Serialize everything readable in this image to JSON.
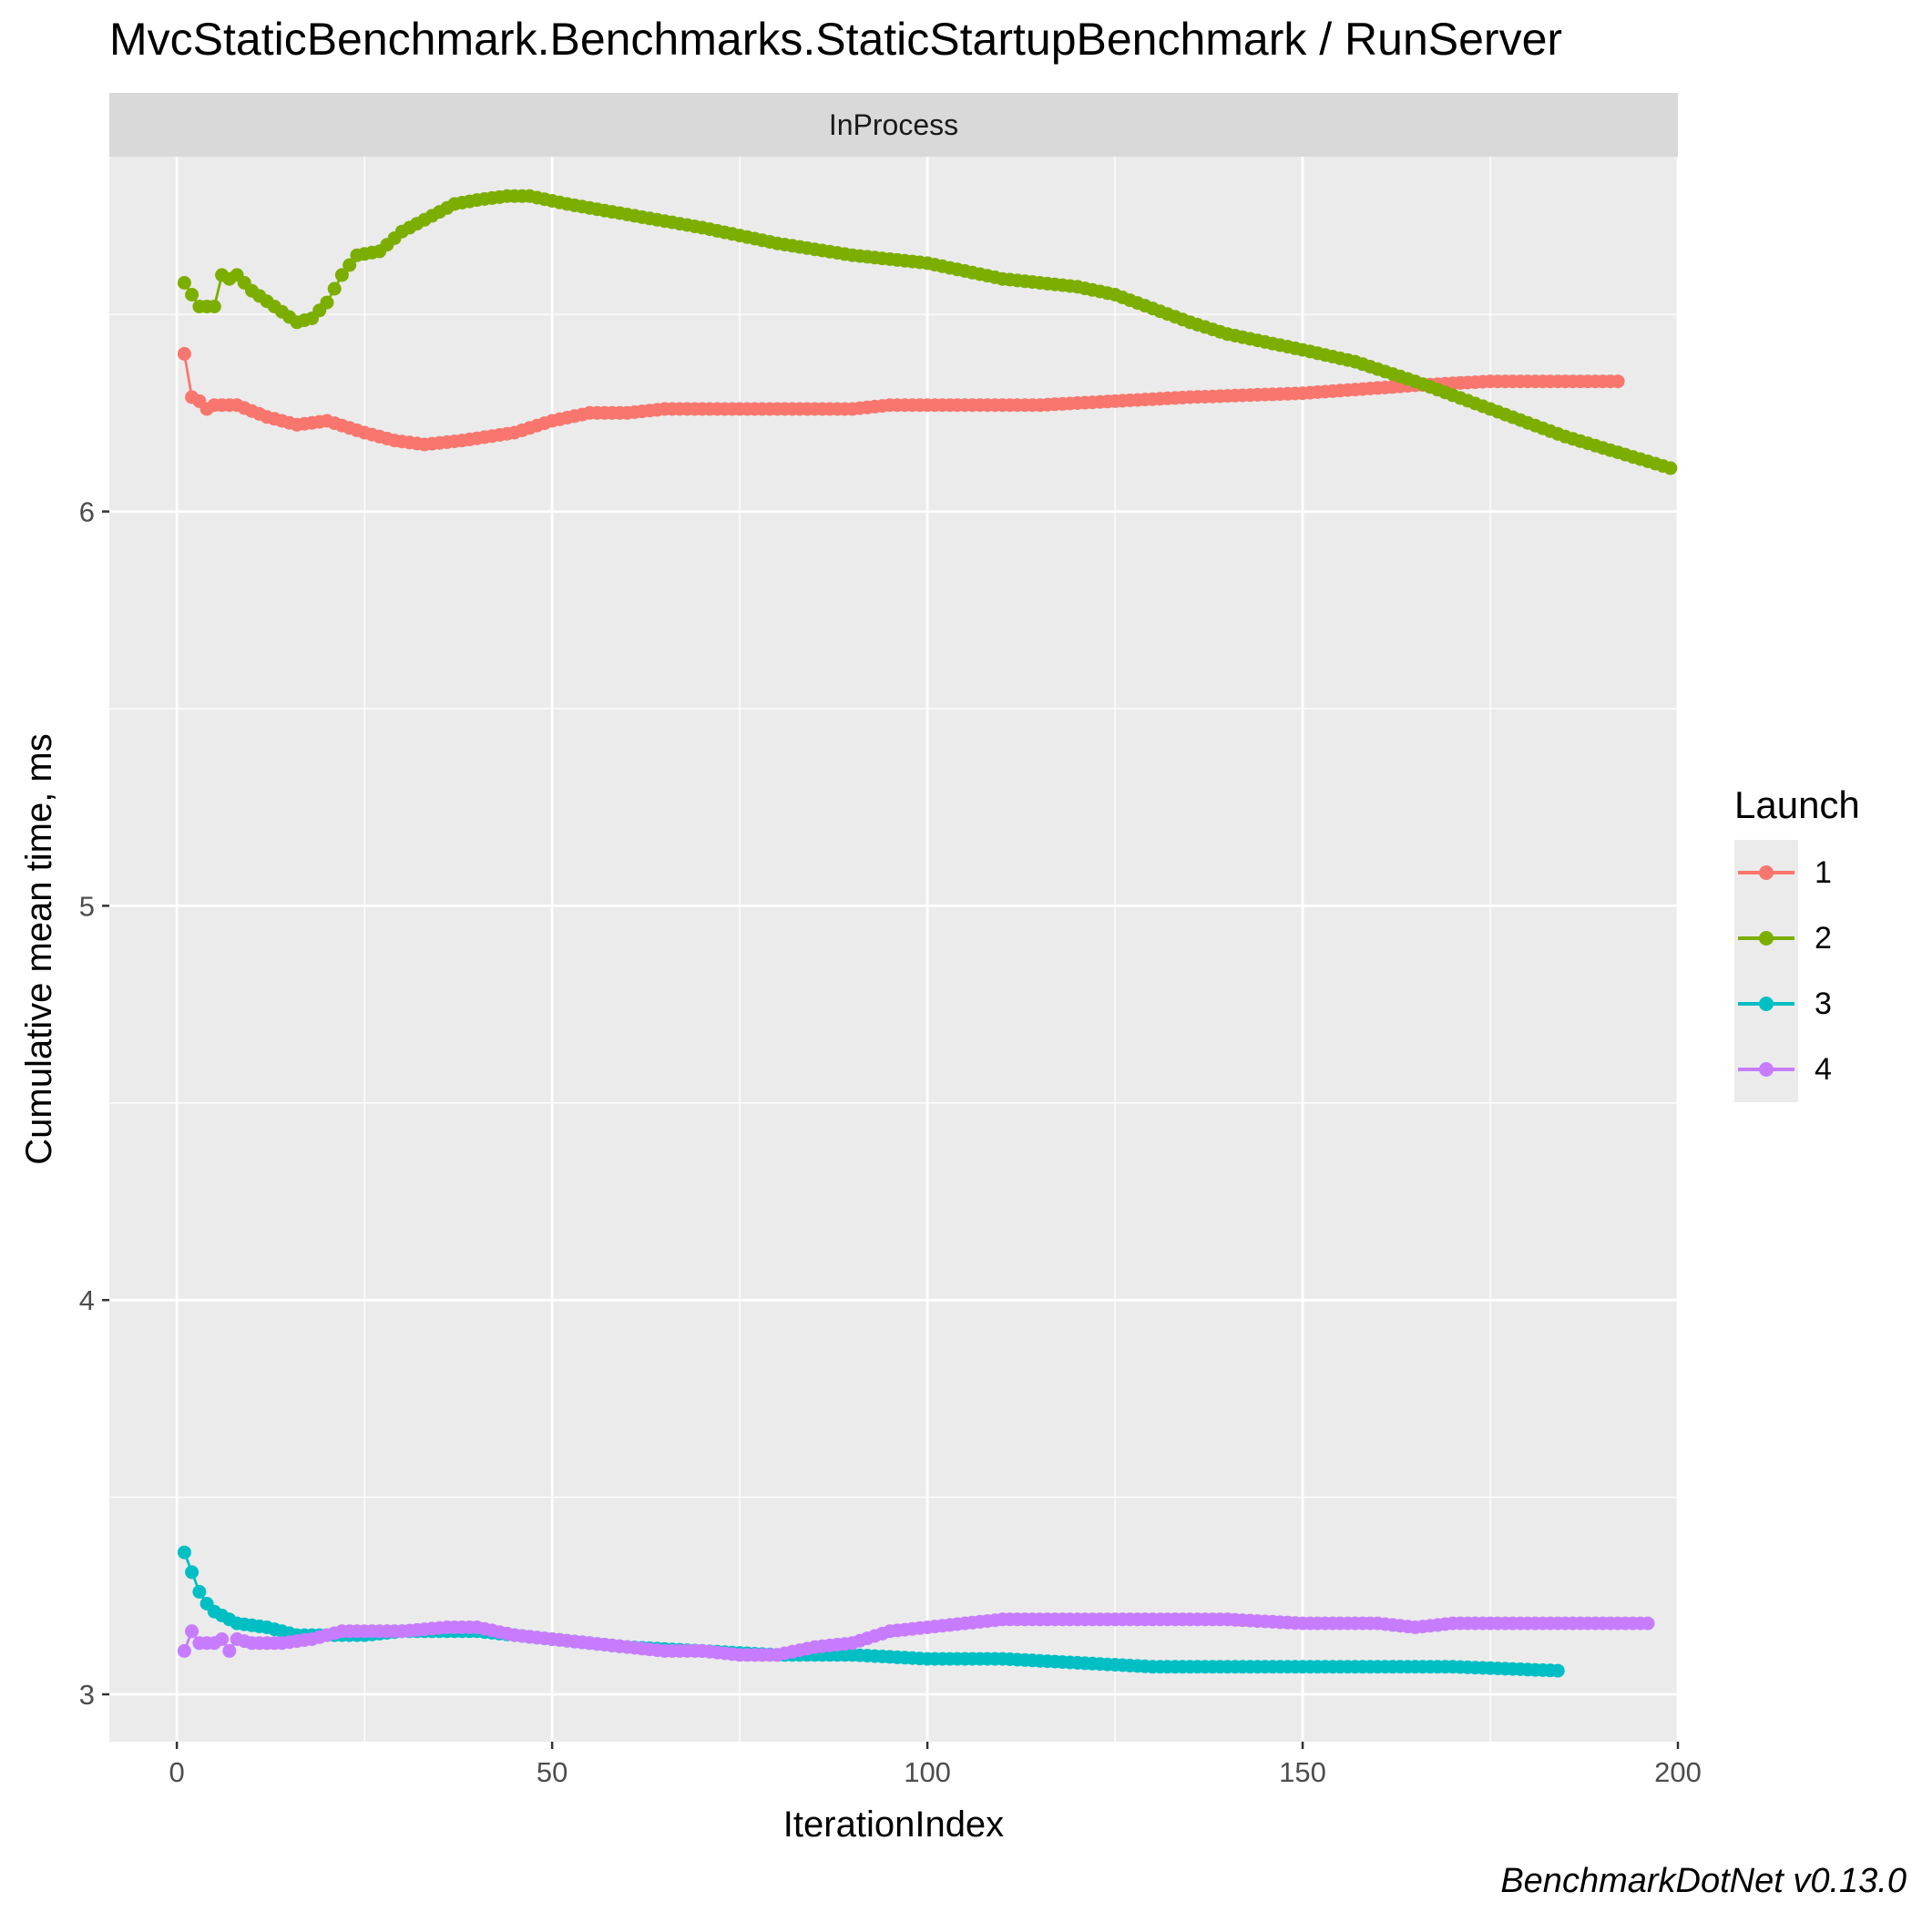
{
  "chart_data": {
    "type": "line",
    "title": "MvcStaticBenchmark.Benchmarks.StaticStartupBenchmark / RunServer",
    "panel_label": "InProcess",
    "xlabel": "IterationIndex",
    "ylabel": "Cumulative mean time, ms",
    "xlim": [
      -9,
      200
    ],
    "ylim": [
      2.88,
      6.9
    ],
    "x_ticks": [
      0,
      50,
      100,
      150,
      200
    ],
    "y_ticks": [
      3,
      4,
      5,
      6
    ],
    "grid": true,
    "legend": {
      "title": "Launch",
      "placement": "right"
    },
    "caption": "BenchmarkDotNet v0.13.0",
    "series": [
      {
        "name": "1",
        "color": "#F8766D",
        "last_x": 192,
        "knots": [
          [
            1,
            6.4
          ],
          [
            2,
            6.29
          ],
          [
            3,
            6.28
          ],
          [
            4,
            6.26
          ],
          [
            5,
            6.27
          ],
          [
            8,
            6.27
          ],
          [
            12,
            6.24
          ],
          [
            16,
            6.22
          ],
          [
            20,
            6.23
          ],
          [
            25,
            6.2
          ],
          [
            29,
            6.18
          ],
          [
            33,
            6.17
          ],
          [
            38,
            6.18
          ],
          [
            45,
            6.2
          ],
          [
            50,
            6.23
          ],
          [
            55,
            6.25
          ],
          [
            60,
            6.25
          ],
          [
            65,
            6.26
          ],
          [
            75,
            6.26
          ],
          [
            90,
            6.26
          ],
          [
            95,
            6.27
          ],
          [
            100,
            6.27
          ],
          [
            115,
            6.27
          ],
          [
            125,
            6.28
          ],
          [
            135,
            6.29
          ],
          [
            150,
            6.3
          ],
          [
            165,
            6.32
          ],
          [
            175,
            6.33
          ],
          [
            185,
            6.33
          ],
          [
            192,
            6.33
          ]
        ]
      },
      {
        "name": "2",
        "color": "#7CAE00",
        "last_x": 199,
        "knots": [
          [
            1,
            6.58
          ],
          [
            2,
            6.55
          ],
          [
            3,
            6.52
          ],
          [
            5,
            6.52
          ],
          [
            6,
            6.6
          ],
          [
            7,
            6.59
          ],
          [
            8,
            6.6
          ],
          [
            10,
            6.56
          ],
          [
            13,
            6.52
          ],
          [
            16,
            6.48
          ],
          [
            18,
            6.49
          ],
          [
            20,
            6.53
          ],
          [
            22,
            6.6
          ],
          [
            24,
            6.65
          ],
          [
            27,
            6.66
          ],
          [
            30,
            6.71
          ],
          [
            34,
            6.75
          ],
          [
            37,
            6.78
          ],
          [
            40,
            6.79
          ],
          [
            44,
            6.8
          ],
          [
            47,
            6.8
          ],
          [
            52,
            6.78
          ],
          [
            58,
            6.76
          ],
          [
            64,
            6.74
          ],
          [
            70,
            6.72
          ],
          [
            80,
            6.68
          ],
          [
            90,
            6.65
          ],
          [
            100,
            6.63
          ],
          [
            110,
            6.59
          ],
          [
            120,
            6.57
          ],
          [
            125,
            6.55
          ],
          [
            135,
            6.48
          ],
          [
            140,
            6.45
          ],
          [
            150,
            6.41
          ],
          [
            157,
            6.38
          ],
          [
            165,
            6.33
          ],
          [
            175,
            6.26
          ],
          [
            185,
            6.19
          ],
          [
            192,
            6.15
          ],
          [
            199,
            6.11
          ]
        ]
      },
      {
        "name": "3",
        "color": "#00BFC4",
        "last_x": 184,
        "knots": [
          [
            1,
            3.36
          ],
          [
            2,
            3.31
          ],
          [
            3,
            3.26
          ],
          [
            4,
            3.23
          ],
          [
            5,
            3.21
          ],
          [
            6,
            3.2
          ],
          [
            8,
            3.18
          ],
          [
            12,
            3.17
          ],
          [
            16,
            3.15
          ],
          [
            20,
            3.15
          ],
          [
            25,
            3.15
          ],
          [
            30,
            3.16
          ],
          [
            35,
            3.16
          ],
          [
            40,
            3.16
          ],
          [
            50,
            3.14
          ],
          [
            60,
            3.12
          ],
          [
            70,
            3.11
          ],
          [
            80,
            3.1
          ],
          [
            90,
            3.1
          ],
          [
            100,
            3.09
          ],
          [
            110,
            3.09
          ],
          [
            120,
            3.08
          ],
          [
            130,
            3.07
          ],
          [
            140,
            3.07
          ],
          [
            160,
            3.07
          ],
          [
            170,
            3.07
          ],
          [
            184,
            3.06
          ]
        ]
      },
      {
        "name": "4",
        "color": "#C77CFF",
        "last_x": 196,
        "knots": [
          [
            1,
            3.11
          ],
          [
            2,
            3.16
          ],
          [
            3,
            3.13
          ],
          [
            5,
            3.13
          ],
          [
            6,
            3.14
          ],
          [
            7,
            3.11
          ],
          [
            8,
            3.14
          ],
          [
            10,
            3.13
          ],
          [
            14,
            3.13
          ],
          [
            18,
            3.14
          ],
          [
            22,
            3.16
          ],
          [
            26,
            3.16
          ],
          [
            30,
            3.16
          ],
          [
            36,
            3.17
          ],
          [
            40,
            3.17
          ],
          [
            45,
            3.15
          ],
          [
            50,
            3.14
          ],
          [
            55,
            3.13
          ],
          [
            60,
            3.12
          ],
          [
            65,
            3.11
          ],
          [
            70,
            3.11
          ],
          [
            75,
            3.1
          ],
          [
            80,
            3.1
          ],
          [
            85,
            3.12
          ],
          [
            90,
            3.13
          ],
          [
            95,
            3.16
          ],
          [
            100,
            3.17
          ],
          [
            105,
            3.18
          ],
          [
            110,
            3.19
          ],
          [
            120,
            3.19
          ],
          [
            130,
            3.19
          ],
          [
            140,
            3.19
          ],
          [
            150,
            3.18
          ],
          [
            160,
            3.18
          ],
          [
            165,
            3.17
          ],
          [
            170,
            3.18
          ],
          [
            180,
            3.18
          ],
          [
            190,
            3.18
          ],
          [
            196,
            3.18
          ]
        ]
      }
    ]
  }
}
